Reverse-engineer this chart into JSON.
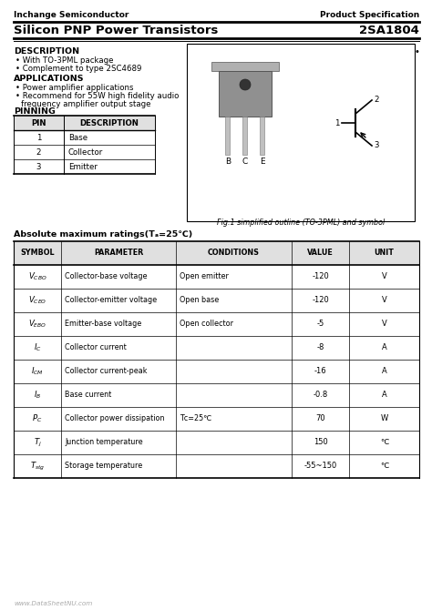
{
  "bg_color": "#ffffff",
  "header_left": "Inchange Semiconductor",
  "header_right": "Product Specification",
  "title_left": "Silicon PNP Power Transistors",
  "title_right": "2SA1804",
  "description_title": "DESCRIPTION",
  "description_items": [
    "  With TO-3PML package",
    "  Complement to type 2SC4689"
  ],
  "applications_title": "APPLICATIONS",
  "applications_items": [
    "  Power amplifier applications",
    "  Recommend for 55W high fidelity audio",
    "  frequency amplifier output stage"
  ],
  "pinning_title": "PINNING",
  "pin_headers": [
    "PIN",
    "DESCRIPTION"
  ],
  "pin_rows": [
    [
      "1",
      "Base"
    ],
    [
      "2",
      "Collector"
    ],
    [
      "3",
      "Emitter"
    ]
  ],
  "fig_caption": "Fig.1 simplified outline (TO-3PML) and symbol",
  "abs_title": "Absolute maximum ratings(Tₐ=25℃)",
  "abs_headers": [
    "SYMBOL",
    "PARAMETER",
    "CONDITIONS",
    "VALUE",
    "UNIT"
  ],
  "abs_rows": [
    [
      "$V_{CBO}$",
      "Collector-base voltage",
      "Open emitter",
      "-120",
      "V"
    ],
    [
      "$V_{CEO}$",
      "Collector-emitter voltage",
      "Open base",
      "-120",
      "V"
    ],
    [
      "$V_{EBO}$",
      "Emitter-base voltage",
      "Open collector",
      "-5",
      "V"
    ],
    [
      "$I_C$",
      "Collector current",
      "",
      "-8",
      "A"
    ],
    [
      "$I_{CM}$",
      "Collector current-peak",
      "",
      "-16",
      "A"
    ],
    [
      "$I_B$",
      "Base current",
      "",
      "-0.8",
      "A"
    ],
    [
      "$P_C$",
      "Collector power dissipation",
      "Tᴄ=25℃",
      "70",
      "W"
    ],
    [
      "$T_j$",
      "Junction temperature",
      "",
      "150",
      "℃"
    ],
    [
      "$T_{stg}$",
      "Storage temperature",
      "",
      "-55~150",
      "℃"
    ]
  ],
  "footer": "www.DataSheetNU.com",
  "text_color": "#000000"
}
